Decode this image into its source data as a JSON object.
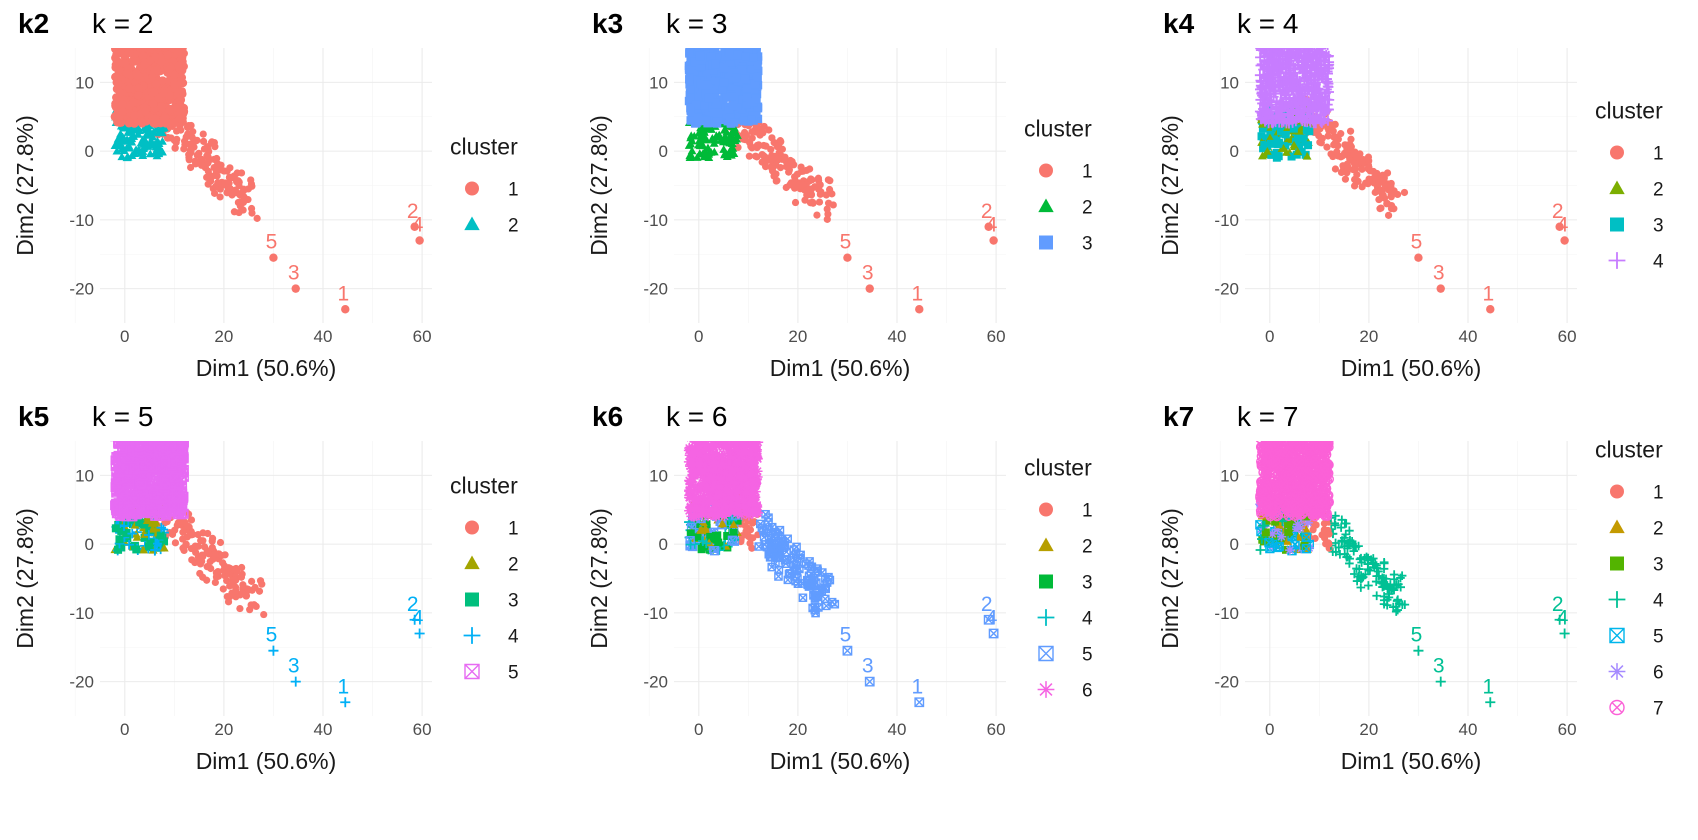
{
  "palette": [
    "#F8766D",
    "#00BFC4"
  ],
  "palettes": {
    "2": [
      "#F8766D",
      "#00BFC4"
    ],
    "3": [
      "#F8766D",
      "#00BA38",
      "#619CFF"
    ],
    "4": [
      "#F8766D",
      "#7CAE00",
      "#00BFC4",
      "#C77CFF"
    ],
    "5": [
      "#F8766D",
      "#A3A500",
      "#00BF7D",
      "#00B0F6",
      "#E76BF3"
    ],
    "6": [
      "#F8766D",
      "#B79F00",
      "#00BA38",
      "#00BFC4",
      "#619CFF",
      "#F564E3"
    ],
    "7": [
      "#F8766D",
      "#C49A00",
      "#53B400",
      "#00C094",
      "#00B6EB",
      "#A58AFF",
      "#FB61D7"
    ]
  },
  "chart_data": [
    {
      "type": "scatter",
      "tag": "k2",
      "title": "k = 2",
      "xlabel": "Dim1 (50.6%)",
      "ylabel": "Dim2 (27.8%)",
      "xlim": [
        -5,
        62
      ],
      "ylim": [
        -25,
        15
      ],
      "x_ticks": [
        "0",
        "20",
        "40",
        "60"
      ],
      "y_ticks": [
        "10",
        "0",
        "-10",
        "-20"
      ],
      "grid": true,
      "legend": {
        "title": "cluster",
        "labels": [
          "1",
          "2"
        ],
        "position": "right"
      },
      "outlier_cluster": 1,
      "outliers": [
        {
          "label": "1",
          "x": 44.5,
          "y": -23,
          "cluster": 1
        },
        {
          "label": "3",
          "x": 34.5,
          "y": -20,
          "cluster": 1
        },
        {
          "label": "5",
          "x": 30,
          "y": -15.5,
          "cluster": 1
        },
        {
          "label": "2",
          "x": 58.5,
          "y": -11,
          "cluster": 1
        },
        {
          "label": "4",
          "x": 59.5,
          "y": -13,
          "cluster": 1
        }
      ]
    },
    {
      "type": "scatter",
      "tag": "k3",
      "title": "k = 3",
      "xlabel": "Dim1 (50.6%)",
      "ylabel": "Dim2 (27.8%)",
      "xlim": [
        -5,
        62
      ],
      "ylim": [
        -25,
        15
      ],
      "x_ticks": [
        "0",
        "20",
        "40",
        "60"
      ],
      "y_ticks": [
        "10",
        "0",
        "-10",
        "-20"
      ],
      "grid": true,
      "legend": {
        "title": "cluster",
        "labels": [
          "1",
          "2",
          "3"
        ],
        "position": "right"
      },
      "outlier_cluster": 1,
      "outliers": [
        {
          "label": "1",
          "x": 44.5,
          "y": -23,
          "cluster": 1
        },
        {
          "label": "3",
          "x": 34.5,
          "y": -20,
          "cluster": 1
        },
        {
          "label": "5",
          "x": 30,
          "y": -15.5,
          "cluster": 1
        },
        {
          "label": "2",
          "x": 58.5,
          "y": -11,
          "cluster": 1
        },
        {
          "label": "4",
          "x": 59.5,
          "y": -13,
          "cluster": 1
        }
      ]
    },
    {
      "type": "scatter",
      "tag": "k4",
      "title": "k = 4",
      "xlabel": "Dim1 (50.6%)",
      "ylabel": "Dim2 (27.8%)",
      "xlim": [
        -5,
        62
      ],
      "ylim": [
        -25,
        15
      ],
      "x_ticks": [
        "0",
        "20",
        "40",
        "60"
      ],
      "y_ticks": [
        "10",
        "0",
        "-10",
        "-20"
      ],
      "grid": true,
      "legend": {
        "title": "cluster",
        "labels": [
          "1",
          "2",
          "3",
          "4"
        ],
        "position": "right"
      },
      "outlier_cluster": 1,
      "outliers": [
        {
          "label": "1",
          "x": 44.5,
          "y": -23,
          "cluster": 1
        },
        {
          "label": "3",
          "x": 34.5,
          "y": -20,
          "cluster": 1
        },
        {
          "label": "5",
          "x": 30,
          "y": -15.5,
          "cluster": 1
        },
        {
          "label": "2",
          "x": 58.5,
          "y": -11,
          "cluster": 1
        },
        {
          "label": "4",
          "x": 59.5,
          "y": -13,
          "cluster": 1
        }
      ]
    },
    {
      "type": "scatter",
      "tag": "k5",
      "title": "k = 5",
      "xlabel": "Dim1 (50.6%)",
      "ylabel": "Dim2 (27.8%)",
      "xlim": [
        -5,
        62
      ],
      "ylim": [
        -25,
        15
      ],
      "x_ticks": [
        "0",
        "20",
        "40",
        "60"
      ],
      "y_ticks": [
        "10",
        "0",
        "-10",
        "-20"
      ],
      "grid": true,
      "legend": {
        "title": "cluster",
        "labels": [
          "1",
          "2",
          "3",
          "4",
          "5"
        ],
        "position": "right"
      },
      "outlier_cluster": 4,
      "outliers": [
        {
          "label": "1",
          "x": 44.5,
          "y": -23,
          "cluster": 4
        },
        {
          "label": "3",
          "x": 34.5,
          "y": -20,
          "cluster": 4
        },
        {
          "label": "5",
          "x": 30,
          "y": -15.5,
          "cluster": 4
        },
        {
          "label": "2",
          "x": 58.5,
          "y": -11,
          "cluster": 4
        },
        {
          "label": "4",
          "x": 59.5,
          "y": -13,
          "cluster": 4
        }
      ]
    },
    {
      "type": "scatter",
      "tag": "k6",
      "title": "k = 6",
      "xlabel": "Dim1 (50.6%)",
      "ylabel": "Dim2 (27.8%)",
      "xlim": [
        -5,
        62
      ],
      "ylim": [
        -25,
        15
      ],
      "x_ticks": [
        "0",
        "20",
        "40",
        "60"
      ],
      "y_ticks": [
        "10",
        "0",
        "-10",
        "-20"
      ],
      "grid": true,
      "legend": {
        "title": "cluster",
        "labels": [
          "1",
          "2",
          "3",
          "4",
          "5",
          "6"
        ],
        "position": "right"
      },
      "outlier_cluster": 5,
      "outliers": [
        {
          "label": "1",
          "x": 44.5,
          "y": -23,
          "cluster": 5
        },
        {
          "label": "3",
          "x": 34.5,
          "y": -20,
          "cluster": 5
        },
        {
          "label": "5",
          "x": 30,
          "y": -15.5,
          "cluster": 5
        },
        {
          "label": "2",
          "x": 58.5,
          "y": -11,
          "cluster": 5
        },
        {
          "label": "4",
          "x": 59.5,
          "y": -13,
          "cluster": 5
        }
      ]
    },
    {
      "type": "scatter",
      "tag": "k7",
      "title": "k = 7",
      "xlabel": "Dim1 (50.6%)",
      "ylabel": "Dim2 (27.8%)",
      "xlim": [
        -5,
        62
      ],
      "ylim": [
        -25,
        15
      ],
      "x_ticks": [
        "0",
        "20",
        "40",
        "60"
      ],
      "y_ticks": [
        "10",
        "0",
        "-10",
        "-20"
      ],
      "grid": true,
      "legend": {
        "title": "cluster",
        "labels": [
          "1",
          "2",
          "3",
          "4",
          "5",
          "6",
          "7"
        ],
        "position": "right"
      },
      "outlier_cluster": 4,
      "outliers": [
        {
          "label": "1",
          "x": 44.5,
          "y": -23,
          "cluster": 4
        },
        {
          "label": "3",
          "x": 34.5,
          "y": -20,
          "cluster": 4
        },
        {
          "label": "5",
          "x": 30,
          "y": -15.5,
          "cluster": 4
        },
        {
          "label": "2",
          "x": 58.5,
          "y": -11,
          "cluster": 4
        },
        {
          "label": "4",
          "x": 59.5,
          "y": -13,
          "cluster": 4
        }
      ]
    }
  ]
}
